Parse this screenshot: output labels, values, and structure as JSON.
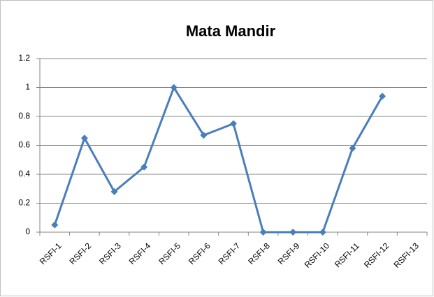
{
  "chart_data": {
    "type": "line",
    "title": "Mata Mandir",
    "categories": [
      "RSFI-1",
      "RSFI-2",
      "RSFI-3",
      "RSFI-4",
      "RSFI-5",
      "RSFI-6",
      "RSFI-7",
      "RSFI-8",
      "RSFI-9",
      "RSFI-10",
      "RSFI-11",
      "RSFI-12",
      "RSFI-13"
    ],
    "series": [
      {
        "name": "Mata Mandir",
        "color": "#4a7ebb",
        "values": [
          0.05,
          0.65,
          0.28,
          0.45,
          1.0,
          0.67,
          0.75,
          0,
          0,
          0,
          0.58,
          0.94,
          null
        ]
      }
    ],
    "ylim": [
      0,
      1.2
    ],
    "yticks": [
      0,
      0.2,
      0.4,
      0.6,
      0.8,
      1,
      1.2
    ],
    "grid": true
  }
}
